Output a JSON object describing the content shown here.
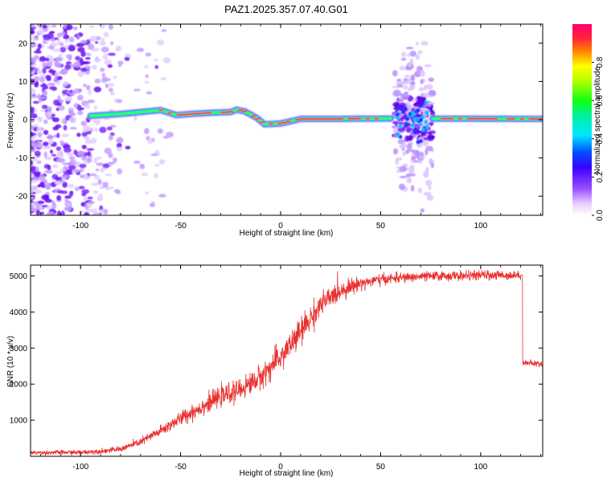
{
  "title": "PAZ1.2025.357.07.40.G01",
  "colors": {
    "snr_line": "#e8302e",
    "colormap": [
      "#ffffff",
      "#b890ff",
      "#6a00ff",
      "#0000ff",
      "#00e0ff",
      "#00ff40",
      "#ffff00",
      "#ff3050",
      "#ff0060"
    ]
  },
  "chart_data": [
    {
      "id": "spectrogram",
      "type": "heatmap",
      "xlabel": "Height of straight line (km)",
      "ylabel": "Frequency (Hz)",
      "xlim": [
        -125,
        131
      ],
      "ylim": [
        -25,
        25
      ],
      "xticks": [
        -100,
        -50,
        0,
        50,
        100
      ],
      "xtick_labels": [
        "-100",
        "-50",
        "0",
        "50",
        "100"
      ],
      "yticks": [
        -20,
        -10,
        0,
        10,
        20
      ],
      "ytick_labels": [
        "-20",
        "-10",
        "0",
        "10",
        "20"
      ],
      "colorbar": {
        "label": "Normalized spectral amplitude",
        "range": [
          0,
          1
        ],
        "ticks": [
          0.0,
          0.2,
          0.4,
          0.6,
          0.8
        ],
        "tick_labels": [
          "0.0",
          "0.2",
          "0.4",
          "0.6",
          "0.8"
        ]
      },
      "ridge": [
        {
          "x": -95,
          "f": 1.0
        },
        {
          "x": -80,
          "f": 1.5
        },
        {
          "x": -70,
          "f": 2.0
        },
        {
          "x": -60,
          "f": 2.5
        },
        {
          "x": -52,
          "f": 1.2
        },
        {
          "x": -45,
          "f": 1.5
        },
        {
          "x": -35,
          "f": 1.8
        },
        {
          "x": -25,
          "f": 2.0
        },
        {
          "x": -22,
          "f": 2.6
        },
        {
          "x": -18,
          "f": 2.2
        },
        {
          "x": -12,
          "f": 0.5
        },
        {
          "x": -8,
          "f": -1.2
        },
        {
          "x": 0,
          "f": -1.0
        },
        {
          "x": 10,
          "f": 0.2
        },
        {
          "x": 25,
          "f": 0.2
        },
        {
          "x": 55,
          "f": 0.3
        },
        {
          "x": 131,
          "f": 0.2
        }
      ],
      "noise_region": [
        -125,
        -65
      ],
      "disturbed_region": [
        55,
        76
      ]
    },
    {
      "id": "snr",
      "type": "line",
      "xlabel": "Height of straight line (km)",
      "ylabel": "SNR (10 * v/v)",
      "xlim": [
        -125,
        131
      ],
      "ylim": [
        0,
        5300
      ],
      "xticks": [
        -100,
        -50,
        0,
        50,
        100
      ],
      "xtick_labels": [
        "-100",
        "-50",
        "0",
        "50",
        "100"
      ],
      "yticks": [
        1000,
        2000,
        3000,
        4000,
        5000
      ],
      "ytick_labels": [
        "1000",
        "2000",
        "3000",
        "4000",
        "5000"
      ],
      "series": [
        {
          "name": "SNR",
          "x": [
            -125,
            -100,
            -90,
            -80,
            -70,
            -60,
            -50,
            -40,
            -30,
            -20,
            -10,
            0,
            10,
            20,
            30,
            40,
            50,
            60,
            70,
            80,
            90,
            100,
            110,
            120,
            121,
            131
          ],
          "y": [
            100,
            110,
            140,
            200,
            400,
            700,
            1050,
            1350,
            1650,
            1850,
            2200,
            2750,
            3450,
            4200,
            4600,
            4800,
            4900,
            4950,
            4980,
            5000,
            5000,
            5020,
            5020,
            5020,
            2600,
            2550
          ],
          "noise": [
            50,
            60,
            60,
            70,
            100,
            140,
            180,
            220,
            240,
            260,
            300,
            340,
            360,
            300,
            240,
            160,
            140,
            120,
            120,
            120,
            120,
            120,
            120,
            100,
            80,
            80
          ]
        }
      ]
    }
  ]
}
